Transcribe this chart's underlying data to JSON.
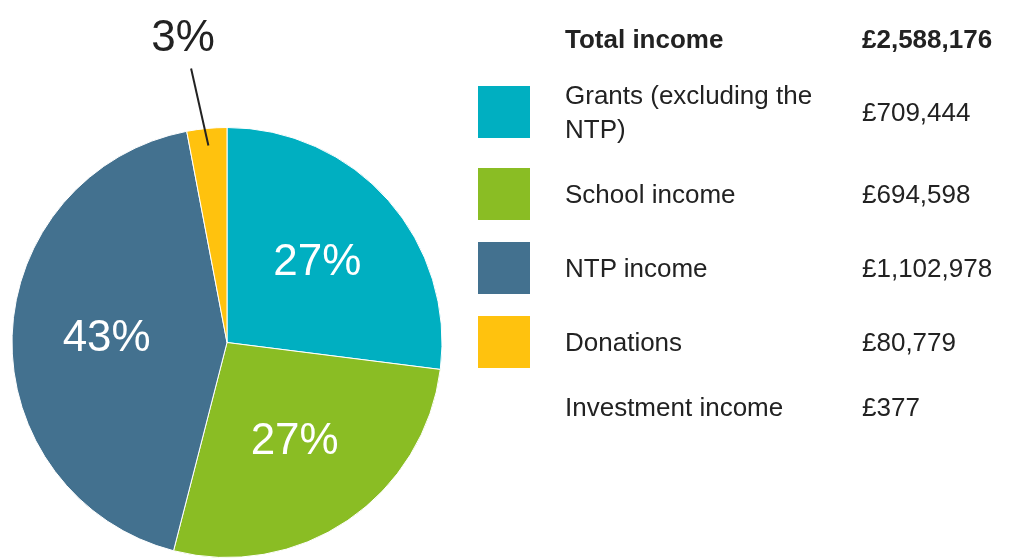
{
  "chart_data": {
    "type": "pie",
    "categories": [
      "Grants (excluding the NTP)",
      "School income",
      "NTP income",
      "Donations"
    ],
    "values": [
      27,
      27,
      43,
      3
    ],
    "colors": [
      "#00afc1",
      "#8abd24",
      "#43718f",
      "#ffc20e"
    ],
    "value_labels": [
      "27%",
      "27%",
      "43%",
      "3%"
    ],
    "legend": "right",
    "annotations": [
      "Total income",
      "£2,588,176",
      "£709,444",
      "£694,598",
      "£1,102,978",
      "£80,779",
      "Investment income",
      "£377"
    ]
  }
}
